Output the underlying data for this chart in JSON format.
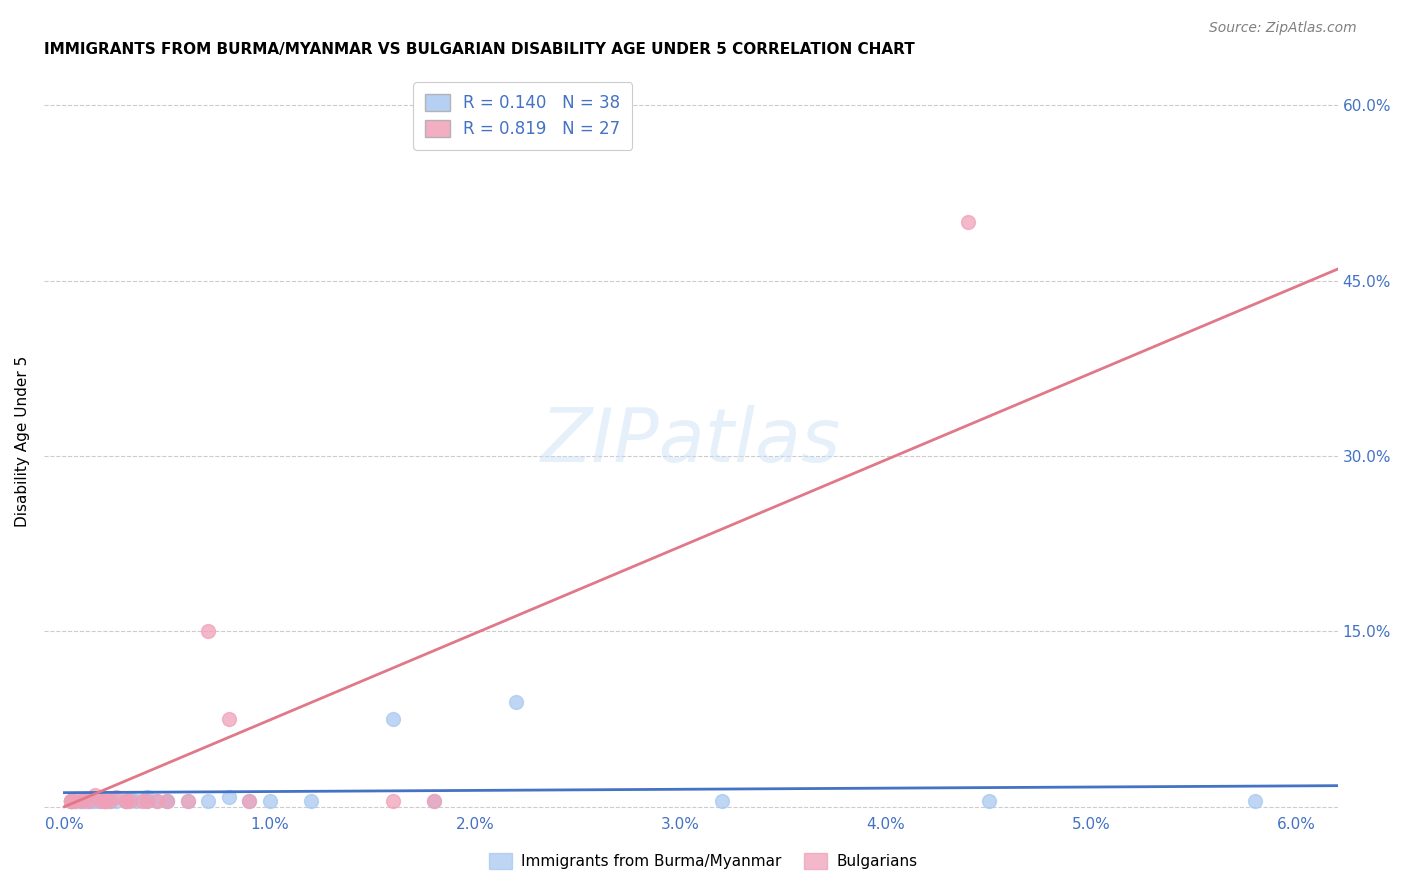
{
  "title": "IMMIGRANTS FROM BURMA/MYANMAR VS BULGARIAN DISABILITY AGE UNDER 5 CORRELATION CHART",
  "source": "Source: ZipAtlas.com",
  "ylabel": "Disability Age Under 5",
  "x_ticks": [
    0.0,
    0.01,
    0.02,
    0.03,
    0.04,
    0.05,
    0.06
  ],
  "x_tick_labels": [
    "0.0%",
    "1.0%",
    "2.0%",
    "3.0%",
    "4.0%",
    "5.0%",
    "6.0%"
  ],
  "y_ticks": [
    0.0,
    0.15,
    0.3,
    0.45,
    0.6
  ],
  "y_tick_labels": [
    "",
    "15.0%",
    "30.0%",
    "45.0%",
    "60.0%"
  ],
  "xlim": [
    -0.001,
    0.062
  ],
  "ylim": [
    -0.005,
    0.63
  ],
  "color_burma": "#a8c8f0",
  "color_bulg": "#f0a0b8",
  "trendline_burma_color": "#4472c4",
  "trendline_bulg_color": "#e07888",
  "legend_label_burma": "R = 0.140   N = 38",
  "legend_label_bulg": "R = 0.819   N = 27",
  "legend_text_color": "#4472c4",
  "tick_color": "#4472c4",
  "background_color": "#ffffff",
  "grid_color": "#cccccc",
  "title_fontsize": 11,
  "watermark_text": "ZIPatlas",
  "trendline_bulg_x0": 0.0,
  "trendline_bulg_y0": 0.0,
  "trendline_bulg_x1": 0.062,
  "trendline_bulg_y1": 0.46,
  "trendline_burma_x0": 0.0,
  "trendline_burma_y0": 0.012,
  "trendline_burma_x1": 0.062,
  "trendline_burma_y1": 0.018,
  "burma_x": [
    0.0003,
    0.0003,
    0.0003,
    0.0003,
    0.0005,
    0.0008,
    0.0009,
    0.001,
    0.001,
    0.0012,
    0.0013,
    0.0015,
    0.0017,
    0.002,
    0.002,
    0.0022,
    0.0025,
    0.003,
    0.003,
    0.0032,
    0.0035,
    0.004,
    0.004,
    0.0045,
    0.005,
    0.005,
    0.006,
    0.007,
    0.008,
    0.009,
    0.01,
    0.012,
    0.016,
    0.018,
    0.022,
    0.032,
    0.045,
    0.058
  ],
  "burma_y": [
    0.005,
    0.005,
    0.005,
    0.005,
    0.005,
    0.005,
    0.005,
    0.005,
    0.005,
    0.005,
    0.005,
    0.005,
    0.005,
    0.005,
    0.005,
    0.005,
    0.005,
    0.005,
    0.005,
    0.007,
    0.005,
    0.005,
    0.008,
    0.005,
    0.005,
    0.005,
    0.005,
    0.005,
    0.008,
    0.005,
    0.005,
    0.005,
    0.075,
    0.005,
    0.09,
    0.005,
    0.005,
    0.005
  ],
  "bulg_x": [
    0.0003,
    0.0003,
    0.0003,
    0.0005,
    0.0008,
    0.001,
    0.0012,
    0.0015,
    0.0018,
    0.002,
    0.002,
    0.0022,
    0.0025,
    0.003,
    0.003,
    0.0032,
    0.0038,
    0.004,
    0.0045,
    0.005,
    0.006,
    0.007,
    0.008,
    0.009,
    0.016,
    0.018,
    0.044
  ],
  "bulg_y": [
    0.005,
    0.005,
    0.005,
    0.005,
    0.005,
    0.007,
    0.005,
    0.01,
    0.005,
    0.005,
    0.005,
    0.005,
    0.008,
    0.005,
    0.005,
    0.005,
    0.005,
    0.005,
    0.005,
    0.005,
    0.005,
    0.15,
    0.075,
    0.005,
    0.005,
    0.005,
    0.5
  ]
}
